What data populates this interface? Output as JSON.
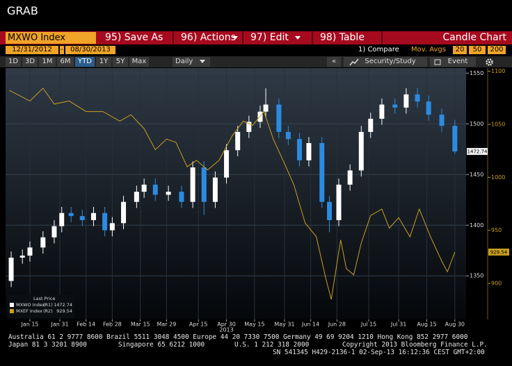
{
  "window_title": "GRAB",
  "menu": {
    "security": "MXWO Index",
    "items": [
      "95) Save As",
      "96) Actions",
      "97) Edit",
      "98) Table"
    ],
    "chart_name": "Candle Chart"
  },
  "range": {
    "start": "12/31/2012",
    "separator": "-",
    "end": "08/30/2013"
  },
  "compare": "1) Compare",
  "mov_avgs": {
    "label": "Mov. Avgs",
    "periods": [
      20,
      50,
      200
    ]
  },
  "periods": [
    "1D",
    "3D",
    "1M",
    "6M",
    "YTD",
    "1Y",
    "5Y",
    "Max"
  ],
  "active_period": 4,
  "frequency": "Daily",
  "collapse": "«",
  "study": "Security/Study",
  "event": "Event",
  "chart_data": {
    "type": "candlestick",
    "xlim": [
      "2013-01-02",
      "2013-09-05"
    ],
    "xticks": [
      {
        "value": "2013-01-15",
        "label": "Jan 15"
      },
      {
        "value": "2013-01-31",
        "label": "Jan 31"
      },
      {
        "value": "2013-02-14",
        "label": "Feb 14"
      },
      {
        "value": "2013-02-28",
        "label": "Feb 28"
      },
      {
        "value": "2013-03-15",
        "label": "Mar 15"
      },
      {
        "value": "2013-03-29",
        "label": "Mar 29"
      },
      {
        "value": "2013-04-15",
        "label": "Apr 15"
      },
      {
        "value": "2013-04-30",
        "label": "Apr 30"
      },
      {
        "value": "2013-05-15",
        "label": "May 15"
      },
      {
        "value": "2013-05-31",
        "label": "May 31"
      },
      {
        "value": "2013-06-14",
        "label": "Jun 14"
      },
      {
        "value": "2013-06-28",
        "label": "Jun 28"
      },
      {
        "value": "2013-07-15",
        "label": "Jul 15"
      },
      {
        "value": "2013-07-31",
        "label": "Jul 31"
      },
      {
        "value": "2013-08-15",
        "label": "Aug 15"
      },
      {
        "value": "2013-08-30",
        "label": "Aug 30"
      }
    ],
    "year_label": "2013",
    "ylim": [
      1307,
      1555
    ],
    "yticks": [
      1350,
      1400,
      1450,
      1500,
      1550
    ],
    "y2lim": [
      866,
      1103
    ],
    "y2ticks": [
      900,
      950,
      1000,
      1050,
      1100
    ],
    "grid": true,
    "legend_title": "Last Price",
    "legend": "lower-left",
    "series": [
      {
        "name": "MXWO Index",
        "axis_tag": "(R1)",
        "up_color": "#ffffff",
        "down_color": "#2c8be0",
        "x": [
          "2013-01-05",
          "2013-01-11",
          "2013-01-15",
          "2013-01-22",
          "2013-01-28",
          "2013-02-01",
          "2013-02-06",
          "2013-02-12",
          "2013-02-18",
          "2013-02-24",
          "2013-02-28",
          "2013-03-06",
          "2013-03-13",
          "2013-03-17",
          "2013-03-23",
          "2013-03-30",
          "2013-04-06",
          "2013-04-12",
          "2013-04-18",
          "2013-04-24",
          "2013-04-30",
          "2013-05-06",
          "2013-05-12",
          "2013-05-18",
          "2013-05-21",
          "2013-05-28",
          "2013-06-02",
          "2013-06-08",
          "2013-06-13",
          "2013-06-20",
          "2013-06-24",
          "2013-06-29",
          "2013-07-05",
          "2013-07-11",
          "2013-07-16",
          "2013-07-22",
          "2013-07-29",
          "2013-08-04",
          "2013-08-10",
          "2013-08-16",
          "2013-08-23",
          "2013-08-30"
        ],
        "open": [
          1345,
          1368,
          1370,
          1378,
          1388,
          1399,
          1412,
          1409,
          1405,
          1412,
          1395,
          1402,
          1423,
          1433,
          1440,
          1430,
          1433,
          1423,
          1457,
          1423,
          1447,
          1474,
          1492,
          1502,
          1512,
          1519,
          1492,
          1485,
          1464,
          1481,
          1423,
          1405,
          1440,
          1454,
          1492,
          1505,
          1519,
          1516,
          1529,
          1522,
          1509,
          1498
        ],
        "high": [
          1374,
          1376,
          1384,
          1394,
          1405,
          1418,
          1418,
          1415,
          1418,
          1418,
          1408,
          1429,
          1439,
          1446,
          1446,
          1439,
          1439,
          1463,
          1463,
          1453,
          1480,
          1498,
          1508,
          1518,
          1535,
          1525,
          1498,
          1491,
          1487,
          1487,
          1429,
          1446,
          1460,
          1498,
          1511,
          1525,
          1525,
          1535,
          1535,
          1528,
          1515,
          1504
        ],
        "low": [
          1339,
          1362,
          1364,
          1372,
          1382,
          1393,
          1403,
          1399,
          1399,
          1389,
          1389,
          1396,
          1417,
          1427,
          1424,
          1424,
          1417,
          1417,
          1410,
          1417,
          1441,
          1468,
          1486,
          1496,
          1506,
          1486,
          1479,
          1458,
          1458,
          1417,
          1393,
          1399,
          1434,
          1448,
          1486,
          1499,
          1510,
          1510,
          1516,
          1503,
          1492,
          1470
        ],
        "close": [
          1368,
          1370,
          1378,
          1388,
          1399,
          1412,
          1409,
          1405,
          1412,
          1395,
          1402,
          1423,
          1433,
          1440,
          1430,
          1433,
          1423,
          1457,
          1423,
          1447,
          1474,
          1492,
          1502,
          1512,
          1519,
          1492,
          1485,
          1464,
          1481,
          1423,
          1405,
          1440,
          1454,
          1492,
          1505,
          1519,
          1516,
          1529,
          1522,
          1509,
          1498,
          1472.74
        ]
      },
      {
        "name": "MXEF Index",
        "axis_tag": "(R2)",
        "type": "line",
        "axis": "y2",
        "color": "#c8a020",
        "x": [
          "2013-01-04",
          "2013-01-15",
          "2013-01-22",
          "2013-01-28",
          "2013-02-05",
          "2013-02-14",
          "2013-02-23",
          "2013-03-04",
          "2013-03-10",
          "2013-03-17",
          "2013-03-23",
          "2013-03-29",
          "2013-04-03",
          "2013-04-09",
          "2013-04-14",
          "2013-04-20",
          "2013-04-26",
          "2013-05-03",
          "2013-05-09",
          "2013-05-14",
          "2013-05-20",
          "2013-05-25",
          "2013-05-31",
          "2013-06-05",
          "2013-06-11",
          "2013-06-17",
          "2013-06-22",
          "2013-06-25",
          "2013-06-30",
          "2013-07-03",
          "2013-07-07",
          "2013-07-11",
          "2013-07-16",
          "2013-07-22",
          "2013-07-26",
          "2013-07-31",
          "2013-08-06",
          "2013-08-11",
          "2013-08-17",
          "2013-08-23",
          "2013-08-26",
          "2013-08-30"
        ],
        "values": [
          1082,
          1072,
          1084,
          1069,
          1072,
          1062,
          1062,
          1053,
          1059,
          1046,
          1026,
          1036,
          1033,
          1010,
          1016,
          1007,
          1016,
          1039,
          1053,
          1049,
          1062,
          1036,
          1013,
          993,
          957,
          944,
          905,
          885,
          941,
          914,
          908,
          938,
          964,
          970,
          952,
          962,
          944,
          970,
          944,
          921,
          911,
          929.54
        ]
      }
    ]
  },
  "footer": {
    "contacts": "Australia 61 2 9777 8600 Brazil 5511 3048 4500 Europe 44 20 7330 7500 Germany 49 69 9204 1210 Hong Kong 852 2977 6000",
    "offices": [
      "Japan 81 3 3201 8900",
      "Singapore 65 6212 1000",
      "U.S. 1 212 318 2000",
      "Copyright 2013 Bloomberg Finance L.P."
    ],
    "session": "SN 541345 H429-2136-1 02-Sep-13 16:12:36 CEST GMT+2:00"
  }
}
